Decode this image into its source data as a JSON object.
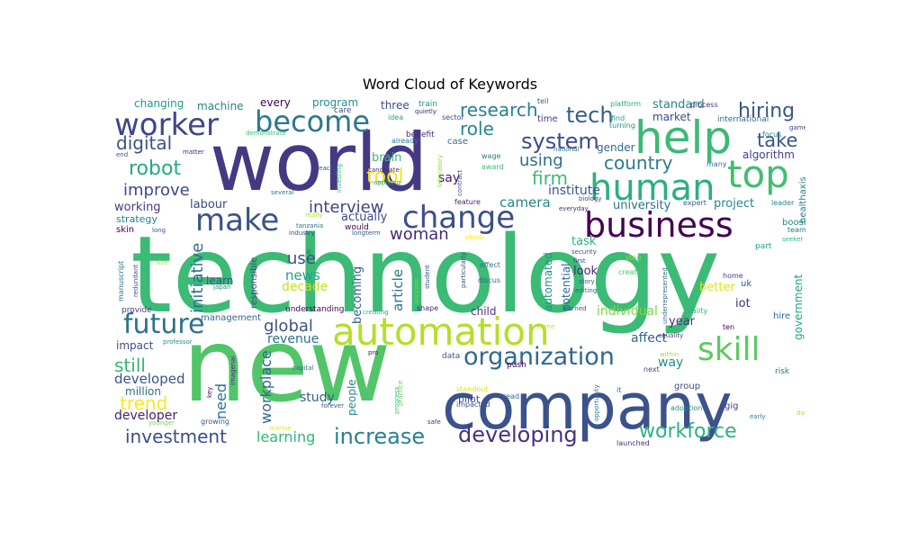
{
  "chart_data": {
    "type": "wordcloud",
    "title": "Word Cloud of Keywords",
    "colormap": "viridis",
    "background": "#ffffff",
    "words": [
      {
        "text": "technology",
        "weight": 100,
        "color": "#3bbb75"
      },
      {
        "text": "new",
        "weight": 92,
        "color": "#52c569"
      },
      {
        "text": "world",
        "weight": 80,
        "color": "#443983"
      },
      {
        "text": "company",
        "weight": 76,
        "color": "#3b528b"
      },
      {
        "text": "help",
        "weight": 44,
        "color": "#3aba76"
      },
      {
        "text": "top",
        "weight": 42,
        "color": "#42be71"
      },
      {
        "text": "automation",
        "weight": 40,
        "color": "#b5de2b"
      },
      {
        "text": "human",
        "weight": 40,
        "color": "#2ab07f"
      },
      {
        "text": "business",
        "weight": 34,
        "color": "#440154"
      },
      {
        "text": "change",
        "weight": 33,
        "color": "#3d4e8a"
      },
      {
        "text": "worker",
        "weight": 33,
        "color": "#404688"
      },
      {
        "text": "become",
        "weight": 31,
        "color": "#2a788e"
      },
      {
        "text": "make",
        "weight": 30,
        "color": "#3b528b"
      },
      {
        "text": "skill",
        "weight": 30,
        "color": "#5ec962"
      },
      {
        "text": "future",
        "weight": 28,
        "color": "#2c728e"
      },
      {
        "text": "organization",
        "weight": 24,
        "color": "#31688e"
      },
      {
        "text": "developing",
        "weight": 22,
        "color": "#46327e"
      },
      {
        "text": "increase",
        "weight": 22,
        "color": "#26828e"
      },
      {
        "text": "robot",
        "weight": 20,
        "color": "#25ab82"
      },
      {
        "text": "system",
        "weight": 20,
        "color": "#3e4a89"
      },
      {
        "text": "research",
        "weight": 18,
        "color": "#26828e"
      },
      {
        "text": "workforce",
        "weight": 18,
        "color": "#2db27d"
      },
      {
        "text": "hiring",
        "weight": 18,
        "color": "#38588c"
      },
      {
        "text": "tech",
        "weight": 18,
        "color": "#34608d"
      },
      {
        "text": "take",
        "weight": 18,
        "color": "#39568c"
      },
      {
        "text": "digital",
        "weight": 17,
        "color": "#3b528b"
      },
      {
        "text": "interview",
        "weight": 16,
        "color": "#414487"
      },
      {
        "text": "woman",
        "weight": 16,
        "color": "#472a7a"
      },
      {
        "text": "country",
        "weight": 16,
        "color": "#287c8e"
      },
      {
        "text": "initiative",
        "weight": 16,
        "color": "#2e6f8e"
      },
      {
        "text": "investment",
        "weight": 16,
        "color": "#3e4c8a"
      },
      {
        "text": "trend",
        "weight": 16,
        "color": "#fde725"
      },
      {
        "text": "still",
        "weight": 16,
        "color": "#35b779"
      },
      {
        "text": "improve",
        "weight": 16,
        "color": "#3e4989"
      },
      {
        "text": "global",
        "weight": 16,
        "color": "#3b528b"
      },
      {
        "text": "tool",
        "weight": 16,
        "color": "#f1e51d"
      },
      {
        "text": "using",
        "weight": 15,
        "color": "#2e6e8e"
      },
      {
        "text": "firm",
        "weight": 15,
        "color": "#3dbc74"
      },
      {
        "text": "role",
        "weight": 15,
        "color": "#238a8d"
      },
      {
        "text": "learning",
        "weight": 14,
        "color": "#34b679"
      },
      {
        "text": "workplace",
        "weight": 14,
        "color": "#31688e"
      },
      {
        "text": "need",
        "weight": 14,
        "color": "#2c738e"
      },
      {
        "text": "use",
        "weight": 14,
        "color": "#3c4f8a"
      },
      {
        "text": "news",
        "weight": 12,
        "color": "#1fa287"
      },
      {
        "text": "article",
        "weight": 12,
        "color": "#2b748e"
      },
      {
        "text": "camera",
        "weight": 12,
        "color": "#24868e"
      },
      {
        "text": "developed",
        "weight": 12,
        "color": "#3b528b"
      },
      {
        "text": "revenue",
        "weight": 12,
        "color": "#2c718e"
      },
      {
        "text": "individual",
        "weight": 11,
        "color": "#84d44b"
      },
      {
        "text": "affect",
        "weight": 11,
        "color": "#32648e"
      },
      {
        "text": "way",
        "weight": 11,
        "color": "#218e8d"
      },
      {
        "text": "study",
        "weight": 11,
        "color": "#355f8d"
      },
      {
        "text": "developer",
        "weight": 11,
        "color": "#482374"
      },
      {
        "text": "decade",
        "weight": 11,
        "color": "#c8e020"
      },
      {
        "text": "institute",
        "weight": 11,
        "color": "#3a548c"
      },
      {
        "text": "university",
        "weight": 10,
        "color": "#2b748e"
      },
      {
        "text": "project",
        "weight": 10,
        "color": "#23898e"
      },
      {
        "text": "labour",
        "weight": 10,
        "color": "#404588"
      },
      {
        "text": "working",
        "weight": 10,
        "color": "#443a83"
      },
      {
        "text": "brain",
        "weight": 10,
        "color": "#3aba76"
      },
      {
        "text": "say",
        "weight": 10,
        "color": "#481769"
      },
      {
        "text": "actually",
        "weight": 10,
        "color": "#3f4889"
      },
      {
        "text": "becoming",
        "weight": 10,
        "color": "#34618d"
      },
      {
        "text": "automated",
        "weight": 10,
        "color": "#21918c"
      },
      {
        "text": "potential",
        "weight": 10,
        "color": "#31688e"
      },
      {
        "text": "task",
        "weight": 10,
        "color": "#2fb47c"
      },
      {
        "text": "look",
        "weight": 10,
        "color": "#482475"
      },
      {
        "text": "better",
        "weight": 10,
        "color": "#dfe318"
      },
      {
        "text": "iot",
        "weight": 10,
        "color": "#46307e"
      },
      {
        "text": "year",
        "weight": 10,
        "color": "#472d7b"
      },
      {
        "text": "government",
        "weight": 10,
        "color": "#20a486"
      },
      {
        "text": "standard",
        "weight": 10,
        "color": "#25848e"
      },
      {
        "text": "algorithm",
        "weight": 10,
        "color": "#433e85"
      },
      {
        "text": "healthaxis",
        "weight": 9,
        "color": "#287d8e"
      },
      {
        "text": "gender",
        "weight": 9,
        "color": "#30698e"
      },
      {
        "text": "market",
        "weight": 9,
        "color": "#3e4a89"
      },
      {
        "text": "three",
        "weight": 9,
        "color": "#3e4c8a"
      },
      {
        "text": "machine",
        "weight": 9,
        "color": "#25858e"
      },
      {
        "text": "changing",
        "weight": 9,
        "color": "#1f988b"
      },
      {
        "text": "every",
        "weight": 9,
        "color": "#440154"
      },
      {
        "text": "program",
        "weight": 9,
        "color": "#21918c"
      },
      {
        "text": "strategy",
        "weight": 9,
        "color": "#24878e"
      },
      {
        "text": "impact",
        "weight": 9,
        "color": "#3d4d8a"
      },
      {
        "text": "million",
        "weight": 9,
        "color": "#2c728e"
      },
      {
        "text": "child",
        "weight": 9,
        "color": "#46337f"
      },
      {
        "text": "people",
        "weight": 9,
        "color": "#24868e"
      },
      {
        "text": "learn",
        "weight": 9,
        "color": "#3a548c"
      },
      {
        "text": "pilot",
        "weight": 8,
        "color": "#3d4e8a"
      },
      {
        "text": "push",
        "weight": 7,
        "color": "#440154"
      },
      {
        "text": "group",
        "weight": 7,
        "color": "#3f4889"
      },
      {
        "text": "boost",
        "weight": 7,
        "color": "#228c8d"
      },
      {
        "text": "hire",
        "weight": 7,
        "color": "#31688e"
      },
      {
        "text": "risk",
        "weight": 7,
        "color": "#2d718e"
      },
      {
        "text": "gig",
        "weight": 7,
        "color": "#404588"
      },
      {
        "text": "part",
        "weight": 7,
        "color": "#1fa088"
      },
      {
        "text": "home",
        "weight": 6,
        "color": "#3f4788"
      },
      {
        "text": "uk",
        "weight": 7,
        "color": "#39568c"
      },
      {
        "text": "international",
        "weight": 7,
        "color": "#2d708e"
      },
      {
        "text": "process",
        "weight": 6,
        "color": "#46337f"
      },
      {
        "text": "platform",
        "weight": 6,
        "color": "#23a983"
      },
      {
        "text": "time",
        "weight": 7,
        "color": "#453781"
      },
      {
        "text": "case",
        "weight": 7,
        "color": "#2e6f8e"
      },
      {
        "text": "care",
        "weight": 7,
        "color": "#3d4d8a"
      },
      {
        "text": "wage",
        "weight": 6,
        "color": "#2a788e"
      },
      {
        "text": "award",
        "weight": 6,
        "color": "#3fbc73"
      },
      {
        "text": "benefit",
        "weight": 7,
        "color": "#472c7a"
      },
      {
        "text": "already",
        "weight": 6,
        "color": "#287d8e"
      },
      {
        "text": "idea",
        "weight": 6,
        "color": "#1fa287"
      },
      {
        "text": "quietly",
        "weight": 6,
        "color": "#482878"
      },
      {
        "text": "train",
        "weight": 7,
        "color": "#21918c"
      },
      {
        "text": "sector",
        "weight": 6,
        "color": "#3e4989"
      },
      {
        "text": "national",
        "weight": 6,
        "color": "#2c738e"
      },
      {
        "text": "tell",
        "weight": 6,
        "color": "#34618d"
      },
      {
        "text": "find",
        "weight": 6,
        "color": "#22a785"
      },
      {
        "text": "turning",
        "weight": 6,
        "color": "#20928c"
      },
      {
        "text": "focus",
        "weight": 6,
        "color": "#277f8e"
      },
      {
        "text": "game",
        "weight": 6,
        "color": "#424086"
      },
      {
        "text": "leader",
        "weight": 6,
        "color": "#23888e"
      },
      {
        "text": "team",
        "weight": 6,
        "color": "#2c738e"
      },
      {
        "text": "seeker",
        "weight": 6,
        "color": "#32b67a"
      },
      {
        "text": "expert",
        "weight": 6,
        "color": "#355e8d"
      },
      {
        "text": "many",
        "weight": 6,
        "color": "#2d708e"
      },
      {
        "text": "everyday",
        "weight": 6,
        "color": "#482979"
      },
      {
        "text": "biology",
        "weight": 6,
        "color": "#3e4a89"
      },
      {
        "text": "security",
        "weight": 6,
        "color": "#3d4e8a"
      },
      {
        "text": "first",
        "weight": 6,
        "color": "#414487"
      },
      {
        "text": "step",
        "weight": 6,
        "color": "#95d840"
      },
      {
        "text": "create",
        "weight": 6,
        "color": "#52c569"
      },
      {
        "text": "story",
        "weight": 6,
        "color": "#32648e"
      },
      {
        "text": "editing",
        "weight": 6,
        "color": "#2f6c8e"
      },
      {
        "text": "learned",
        "weight": 6,
        "color": "#3c4f8a"
      },
      {
        "text": "come",
        "weight": 6,
        "color": "#bddf26"
      },
      {
        "text": "reality",
        "weight": 6,
        "color": "#2fb47c"
      },
      {
        "text": "equality",
        "weight": 6,
        "color": "#3e4a89"
      },
      {
        "text": "within",
        "weight": 6,
        "color": "#aadc32"
      },
      {
        "text": "next",
        "weight": 6,
        "color": "#3f4889"
      },
      {
        "text": "adoption",
        "weight": 6,
        "color": "#21918c"
      },
      {
        "text": "early",
        "weight": 6,
        "color": "#26828e"
      },
      {
        "text": "day",
        "weight": 6,
        "color": "#bddf26"
      },
      {
        "text": "architect",
        "weight": 6,
        "color": "#2a768e"
      },
      {
        "text": "researcher",
        "weight": 6,
        "color": "#2f6c8e"
      },
      {
        "text": "launched",
        "weight": 6,
        "color": "#46307e"
      },
      {
        "text": "opportunity",
        "weight": 6,
        "color": "#2a788e"
      },
      {
        "text": "ten",
        "weight": 6,
        "color": "#440154"
      },
      {
        "text": "underrepresented",
        "weight": 6,
        "color": "#2f6b8e"
      },
      {
        "text": "standout",
        "weight": 6,
        "color": "#dfe318"
      },
      {
        "text": "read",
        "weight": 6,
        "color": "#31688e"
      },
      {
        "text": "impacted",
        "weight": 6,
        "color": "#3b528b"
      },
      {
        "text": "safe",
        "weight": 6,
        "color": "#46327e"
      },
      {
        "text": "data",
        "weight": 7,
        "color": "#38588c"
      },
      {
        "text": "progress",
        "weight": 6,
        "color": "#3dbc74"
      },
      {
        "text": "forever",
        "weight": 6,
        "color": "#3b528b"
      },
      {
        "text": "creating",
        "weight": 6,
        "color": "#26ad81"
      },
      {
        "text": "marine",
        "weight": 6,
        "color": "#e5e419"
      },
      {
        "text": "pro",
        "weight": 6,
        "color": "#471063"
      },
      {
        "text": "shape",
        "weight": 6,
        "color": "#472878"
      },
      {
        "text": "success",
        "weight": 6,
        "color": "#86d549"
      },
      {
        "text": "practice",
        "weight": 6,
        "color": "#6ccd5a"
      },
      {
        "text": "student",
        "weight": 6,
        "color": "#3b528b"
      },
      {
        "text": "particularly",
        "weight": 6,
        "color": "#3e4a89"
      },
      {
        "text": "effect",
        "weight": 6,
        "color": "#2c728e"
      },
      {
        "text": "discus",
        "weight": 6,
        "color": "#355f8d"
      },
      {
        "text": "photo",
        "weight": 6,
        "color": "#fde725"
      },
      {
        "text": "feature",
        "weight": 6,
        "color": "#481f70"
      },
      {
        "text": "contract",
        "weight": 6,
        "color": "#3b528b"
      },
      {
        "text": "laboratory",
        "weight": 6,
        "color": "#8bd646"
      },
      {
        "text": "candidate",
        "weight": 6,
        "color": "#472f7d"
      },
      {
        "text": "applying",
        "weight": 6,
        "color": "#20a486"
      },
      {
        "text": "investing",
        "weight": 6,
        "color": "#35b779"
      },
      {
        "text": "breach",
        "weight": 6,
        "color": "#3e4c8a"
      },
      {
        "text": "several",
        "weight": 6,
        "color": "#2a768e"
      },
      {
        "text": "really",
        "weight": 6,
        "color": "#b0dd2f"
      },
      {
        "text": "tanzania",
        "weight": 6,
        "color": "#2c718e"
      },
      {
        "text": "industry",
        "weight": 6,
        "color": "#3e4c8a"
      },
      {
        "text": "would",
        "weight": 7,
        "color": "#440154"
      },
      {
        "text": "longterm",
        "weight": 6,
        "color": "#39568c"
      },
      {
        "text": "ai",
        "weight": 6,
        "color": "#34618d"
      },
      {
        "text": "demonstrate",
        "weight": 6,
        "color": "#3dbc74"
      },
      {
        "text": "matter",
        "weight": 6,
        "color": "#482878"
      },
      {
        "text": "end",
        "weight": 6,
        "color": "#3e4a89"
      },
      {
        "text": "skin",
        "weight": 7,
        "color": "#440154"
      },
      {
        "text": "long",
        "weight": 6,
        "color": "#3a548c"
      },
      {
        "text": "size",
        "weight": 6,
        "color": "#aadc32"
      },
      {
        "text": "manuscript",
        "weight": 6,
        "color": "#2c728e"
      },
      {
        "text": "redundant",
        "weight": 6,
        "color": "#3e4a89"
      },
      {
        "text": "japan",
        "weight": 6,
        "color": "#228d8d"
      },
      {
        "text": "provide",
        "weight": 7,
        "color": "#443a83"
      },
      {
        "text": "management",
        "weight": 7,
        "color": "#31688e"
      },
      {
        "text": "professor",
        "weight": 6,
        "color": "#21918c"
      },
      {
        "text": "responsible",
        "weight": 7,
        "color": "#3e4989"
      },
      {
        "text": "understanding",
        "weight": 7,
        "color": "#440154"
      },
      {
        "text": "imagenai",
        "weight": 6,
        "color": "#472c7a"
      },
      {
        "text": "capital",
        "weight": 6,
        "color": "#2e6e8e"
      },
      {
        "text": "key",
        "weight": 6,
        "color": "#440154"
      },
      {
        "text": "younger",
        "weight": 6,
        "color": "#7ad151"
      },
      {
        "text": "growing",
        "weight": 6,
        "color": "#3b528b"
      },
      {
        "text": "it",
        "weight": 6,
        "color": "#2c738e"
      }
    ]
  }
}
